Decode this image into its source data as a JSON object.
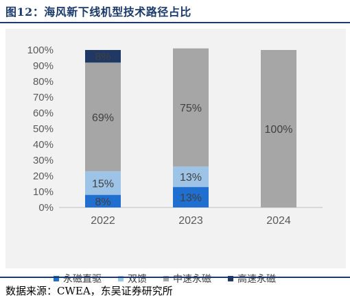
{
  "header": {
    "title": "图12：海风新下线机型技术路径占比"
  },
  "footer": {
    "source": "数据来源：CWEA，东吴证券研究所"
  },
  "chart_data": {
    "type": "bar",
    "stacked": true,
    "categories": [
      "2022",
      "2023",
      "2024"
    ],
    "yticks": [
      "0%",
      "10%",
      "20%",
      "30%",
      "40%",
      "50%",
      "60%",
      "70%",
      "80%",
      "90%",
      "100%"
    ],
    "ylim": [
      0,
      100
    ],
    "grid": false,
    "legend_position": "bottom",
    "series": [
      {
        "name": "永磁直驱",
        "color": "#1f6fd1",
        "values": [
          8,
          13,
          0
        ],
        "labels": [
          "8%",
          "13%",
          ""
        ]
      },
      {
        "name": "双馈",
        "color": "#9dc3e6",
        "values": [
          15,
          13,
          0
        ],
        "labels": [
          "15%",
          "13%",
          ""
        ]
      },
      {
        "name": "中速永磁",
        "color": "#a6a6a6",
        "values": [
          69,
          75,
          100
        ],
        "labels": [
          "69%",
          "75%",
          "100%"
        ]
      },
      {
        "name": "高速永磁",
        "color": "#203864",
        "values": [
          8,
          0,
          0
        ],
        "labels": [
          "8%",
          "",
          ""
        ]
      }
    ]
  }
}
